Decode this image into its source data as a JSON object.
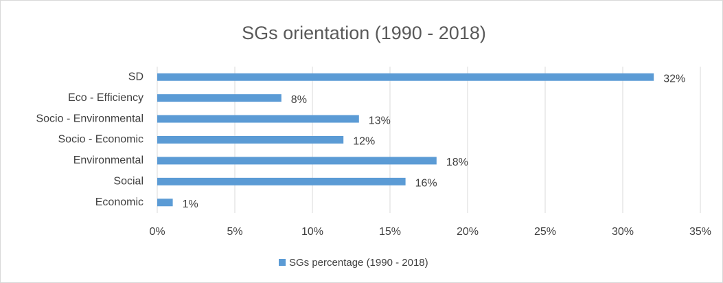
{
  "chart_data": {
    "type": "bar",
    "orientation": "horizontal",
    "title": "SGs orientation (1990 - 2018)",
    "categories": [
      "SD",
      "Eco - Efficiency",
      "Socio - Environmental",
      "Socio - Economic",
      "Environmental",
      "Social",
      "Economic"
    ],
    "series": [
      {
        "name": "SGs percentage (1990 - 2018)",
        "color": "#5b9bd5",
        "values": [
          32,
          8,
          13,
          12,
          18,
          16,
          1
        ],
        "value_labels": [
          "32%",
          "8%",
          "13%",
          "12%",
          "18%",
          "16%",
          "1%"
        ]
      }
    ],
    "xlim": [
      0,
      35
    ],
    "xticks": [
      {
        "value": 0,
        "label": "0%"
      },
      {
        "value": 5,
        "label": "5%"
      },
      {
        "value": 10,
        "label": "10%"
      },
      {
        "value": 15,
        "label": "15%"
      },
      {
        "value": 20,
        "label": "20%"
      },
      {
        "value": 25,
        "label": "25%"
      },
      {
        "value": 30,
        "label": "30%"
      },
      {
        "value": 35,
        "label": "35%"
      }
    ],
    "grid": true,
    "legend": "bottom"
  }
}
